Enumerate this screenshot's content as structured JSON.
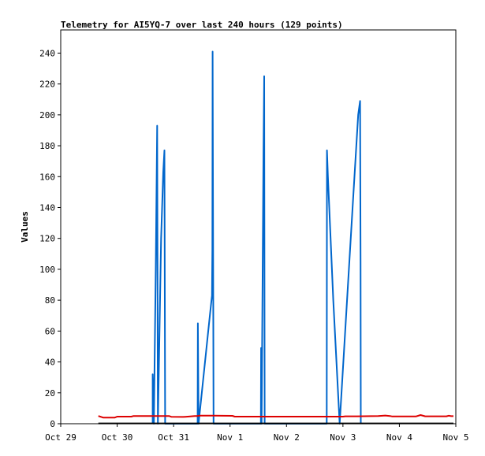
{
  "chart_data": {
    "type": "line",
    "title": "Telemetry for AI5YQ-7 over last 240 hours (129 points)",
    "xlabel": "",
    "ylabel": "Values",
    "ylim": [
      0,
      255
    ],
    "yticks": [
      0,
      20,
      40,
      60,
      80,
      100,
      120,
      140,
      160,
      180,
      200,
      220,
      240
    ],
    "xlim": [
      0,
      168
    ],
    "xticks": [
      {
        "x": 0,
        "label": "Oct 29"
      },
      {
        "x": 24,
        "label": "Oct 30"
      },
      {
        "x": 48,
        "label": "Oct 31"
      },
      {
        "x": 72,
        "label": "Nov 1"
      },
      {
        "x": 96,
        "label": "Nov 2"
      },
      {
        "x": 120,
        "label": "Nov 3"
      },
      {
        "x": 144,
        "label": "Nov 4"
      },
      {
        "x": 168,
        "label": "Nov 5"
      }
    ],
    "grid": false,
    "series": [
      {
        "color": "#0066cc",
        "points": [
          [
            39.1,
            0
          ],
          [
            39.1,
            32
          ],
          [
            39.6,
            0
          ],
          [
            40.4,
            100
          ],
          [
            40.8,
            162
          ],
          [
            41.0,
            193
          ],
          [
            41.3,
            0
          ],
          [
            42.7,
            120
          ],
          [
            43.6,
            163
          ],
          [
            44.1,
            177
          ],
          [
            44.4,
            0
          ],
          [
            58.2,
            0
          ],
          [
            58.3,
            65
          ],
          [
            58.6,
            0
          ],
          [
            63.4,
            70
          ],
          [
            64.3,
            83
          ],
          [
            64.5,
            113
          ],
          [
            64.6,
            241
          ],
          [
            65.0,
            0
          ],
          [
            85.1,
            0
          ],
          [
            85.2,
            49
          ],
          [
            85.4,
            0
          ],
          [
            86.2,
            176
          ],
          [
            86.5,
            225
          ],
          [
            86.7,
            0
          ],
          [
            113.1,
            0
          ],
          [
            113.2,
            177
          ],
          [
            113.6,
            160
          ],
          [
            115.9,
            80
          ],
          [
            118.6,
            0
          ],
          [
            124.1,
            140
          ],
          [
            126.5,
            200
          ],
          [
            127.3,
            209
          ],
          [
            127.5,
            105
          ],
          [
            127.6,
            0
          ]
        ]
      },
      {
        "color": "#dd0000",
        "points": [
          [
            16,
            5
          ],
          [
            18,
            4
          ],
          [
            23,
            4
          ],
          [
            24,
            4.6
          ],
          [
            30,
            4.6
          ],
          [
            31,
            5
          ],
          [
            46,
            5
          ],
          [
            47,
            4.5
          ],
          [
            52,
            4.4
          ],
          [
            53,
            4.5
          ],
          [
            57,
            5
          ],
          [
            58,
            5
          ],
          [
            59,
            5.2
          ],
          [
            65,
            5.2
          ],
          [
            73,
            5.1
          ],
          [
            74,
            4.6
          ],
          [
            84,
            4.6
          ],
          [
            96,
            4.6
          ],
          [
            108,
            4.6
          ],
          [
            120,
            4.6
          ],
          [
            121,
            4.8
          ],
          [
            126,
            4.8
          ],
          [
            135,
            5
          ],
          [
            138,
            5.3
          ],
          [
            140,
            5
          ],
          [
            141,
            4.7
          ],
          [
            151,
            4.7
          ],
          [
            153,
            5.6
          ],
          [
            155,
            4.8
          ],
          [
            164,
            4.8
          ],
          [
            165,
            5.2
          ],
          [
            166,
            4.9
          ],
          [
            167,
            4.9
          ]
        ]
      },
      {
        "color": "#000000",
        "points": [
          [
            16,
            0.2
          ],
          [
            167,
            0.2
          ]
        ]
      }
    ]
  }
}
